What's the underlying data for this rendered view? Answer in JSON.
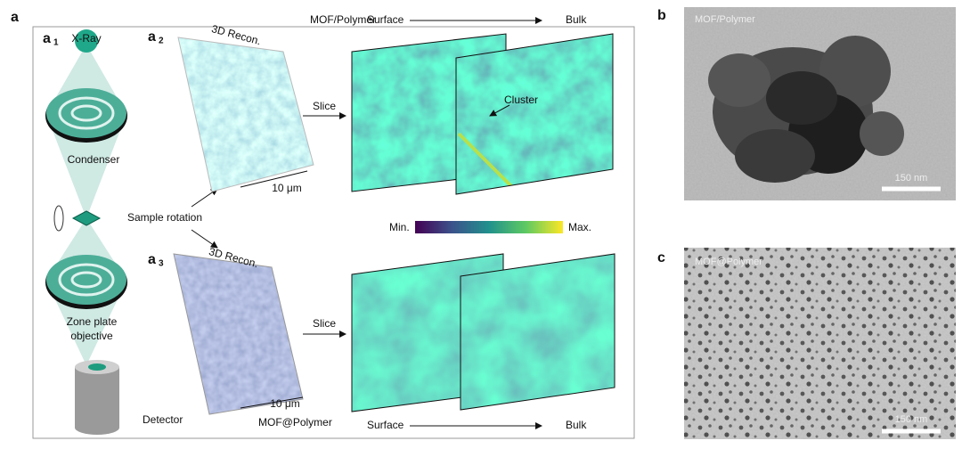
{
  "panel_a": {
    "label": "a",
    "a1": {
      "label": "a",
      "sub": "1",
      "source": "X-Ray",
      "condenser": "Condenser",
      "rotation": "Sample rotation",
      "objective": [
        "Zone plate",
        "objective"
      ],
      "detector": "Detector"
    },
    "a2": {
      "label": "a",
      "sub": "2",
      "recon": "3D Recon.",
      "scale": "10 μm",
      "sample": "MOF/Polymer",
      "surface": "Surface",
      "bulk": "Bulk",
      "slice": "Slice",
      "cluster": "Cluster"
    },
    "colorbar": {
      "min": "Min.",
      "max": "Max."
    },
    "a3": {
      "label": "a",
      "sub": "3",
      "recon": "3D Recon.",
      "scale": "10 μm",
      "sample": "MOF@Polymer",
      "surface": "Surface",
      "bulk": "Bulk",
      "slice": "Slice"
    }
  },
  "panel_b": {
    "label": "b",
    "sample": "MOF/Polymer",
    "scale": "150 nm"
  },
  "panel_c": {
    "label": "c",
    "sample": "MOF@Polymer",
    "scale": "150 nm"
  }
}
